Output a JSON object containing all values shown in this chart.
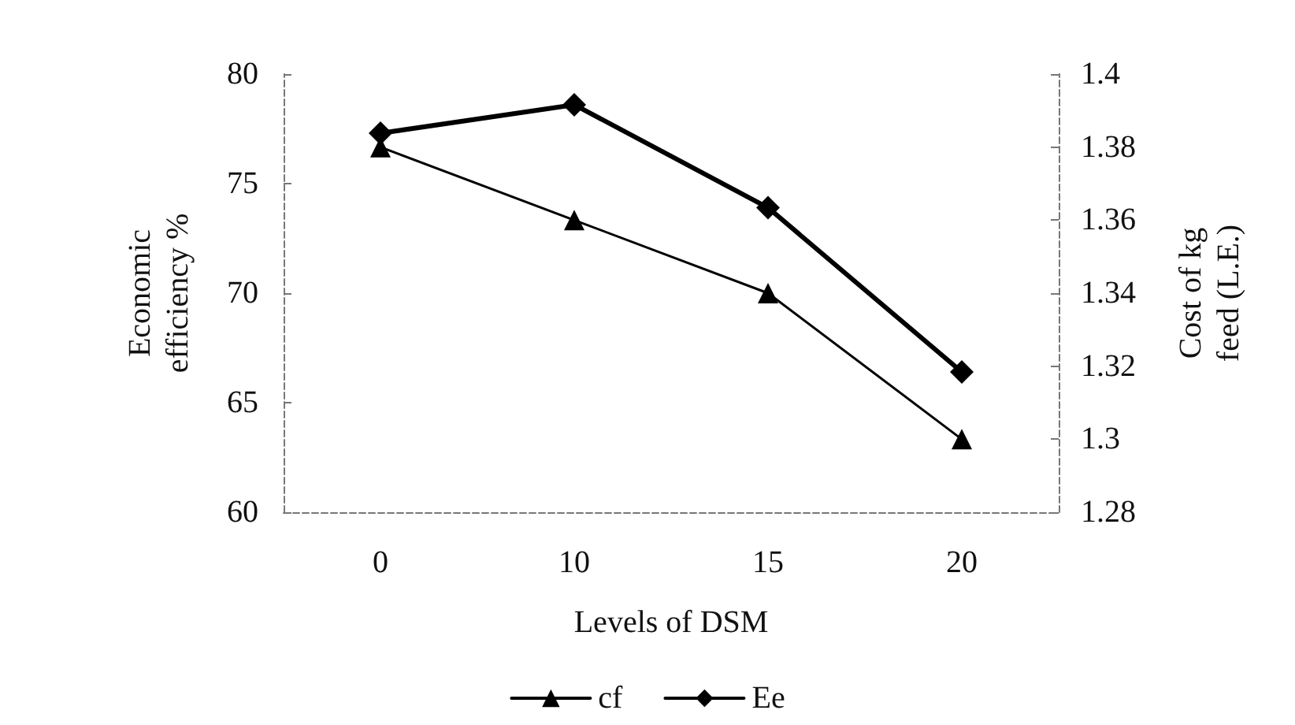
{
  "chart_data": {
    "type": "line",
    "xlabel": "Levels of DSM",
    "ylabel": "Economic\nefficiency %",
    "y2label": "Cost of kg\nfeed (L.E.)",
    "categories": [
      "0",
      "10",
      "15",
      "20"
    ],
    "series": [
      {
        "name": "cf",
        "color": "#000000",
        "axis": "y2",
        "marker": "triangle",
        "values": [
          1.38,
          1.36,
          1.34,
          1.3
        ]
      },
      {
        "name": "Ee",
        "color": "#000000",
        "marker": "diamond",
        "values": [
          77.3,
          78.6,
          73.9,
          66.4
        ]
      }
    ],
    "ylim": [
      60,
      80
    ],
    "yticks": [
      60,
      65,
      70,
      75,
      80
    ],
    "y2lim": [
      1.28,
      1.4
    ],
    "y2ticks": [
      {
        "value": 1.28,
        "label": "1.28"
      },
      {
        "value": 1.3,
        "label": "1.3"
      },
      {
        "value": 1.32,
        "label": "1.32"
      },
      {
        "value": 1.34,
        "label": "1.34"
      },
      {
        "value": 1.36,
        "label": "1.36"
      },
      {
        "value": 1.38,
        "label": "1.38"
      },
      {
        "value": 1.4,
        "label": "1.4"
      }
    ],
    "legend": "bottom",
    "grid": false,
    "line_style": "solid"
  }
}
